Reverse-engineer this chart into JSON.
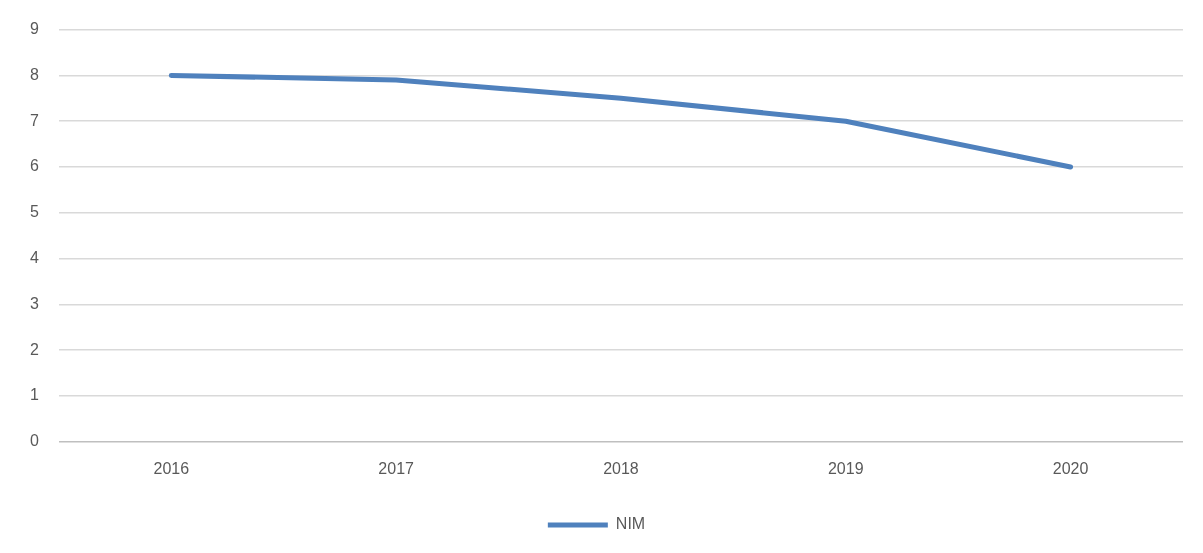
{
  "chart_data": {
    "type": "line",
    "categories": [
      "2016",
      "2017",
      "2018",
      "2019",
      "2020"
    ],
    "series": [
      {
        "name": "NIM",
        "color": "#4f81bd",
        "values": [
          8.0,
          7.9,
          7.5,
          7.0,
          6.0
        ]
      }
    ],
    "ylim": [
      0,
      9
    ],
    "yticks": [
      0,
      1,
      2,
      3,
      4,
      5,
      6,
      7,
      8,
      9
    ],
    "grid": "y",
    "legend": "bottom",
    "marker": "none",
    "line_style": "solid"
  }
}
